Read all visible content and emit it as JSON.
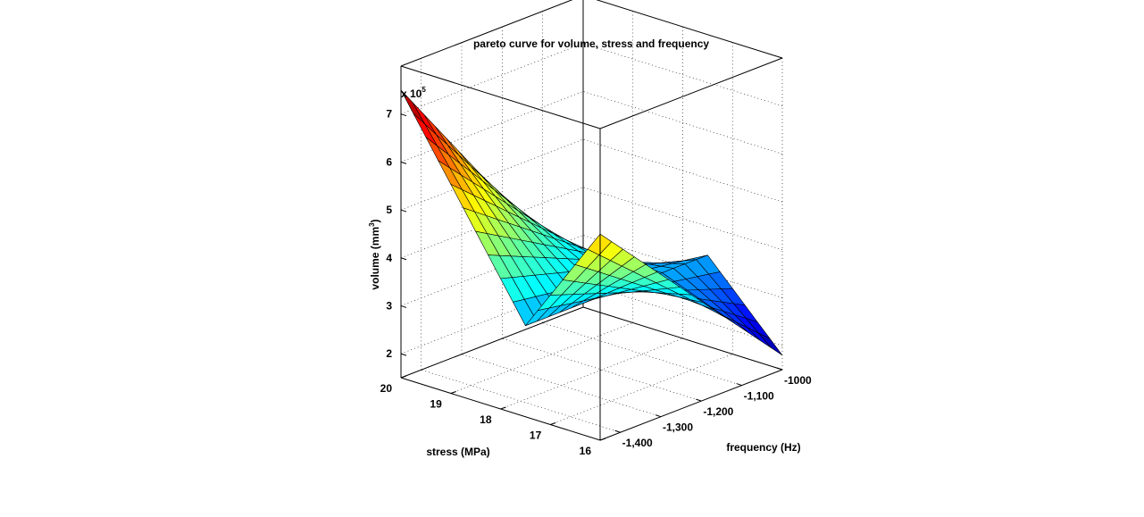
{
  "chart_data": {
    "type": "surface",
    "title": "pareto curve for volume, stress and frequency",
    "xlabel": "frequency (Hz)",
    "ylabel": "stress (MPa)",
    "zlabel_base": "volume (mm",
    "zlabel_sup": "3",
    "zlabel_close": ")",
    "z_exponent_base": "x 10",
    "z_exponent_power": "5",
    "xlim": [
      -1450,
      -1000
    ],
    "ylim": [
      16,
      20
    ],
    "zlim": [
      150000,
      800000
    ],
    "x_ticks": [
      -1400,
      -1300,
      -1200,
      -1100,
      -1000
    ],
    "x_tick_labels": [
      "-1,400",
      "-1,300",
      "-1,200",
      "-1,100",
      "-1000"
    ],
    "y_ticks": [
      16,
      17,
      18,
      19,
      20
    ],
    "y_tick_labels": [
      "16",
      "17",
      "18",
      "19",
      "20"
    ],
    "z_ticks": [
      200000,
      300000,
      400000,
      500000,
      600000,
      700000
    ],
    "z_tick_labels": [
      "2",
      "3",
      "4",
      "5",
      "6",
      "7"
    ],
    "grid": true,
    "colormap": "jet",
    "surface_corners": {
      "at_f_-1450_s_20": 750000,
      "at_f_-1000_s_20": 200000,
      "at_f_-1000_s_16": 180000,
      "at_f_-1450_s_16": 580000
    },
    "surface_fold_stress": 17.5,
    "surface_fold_volume": 340000
  }
}
